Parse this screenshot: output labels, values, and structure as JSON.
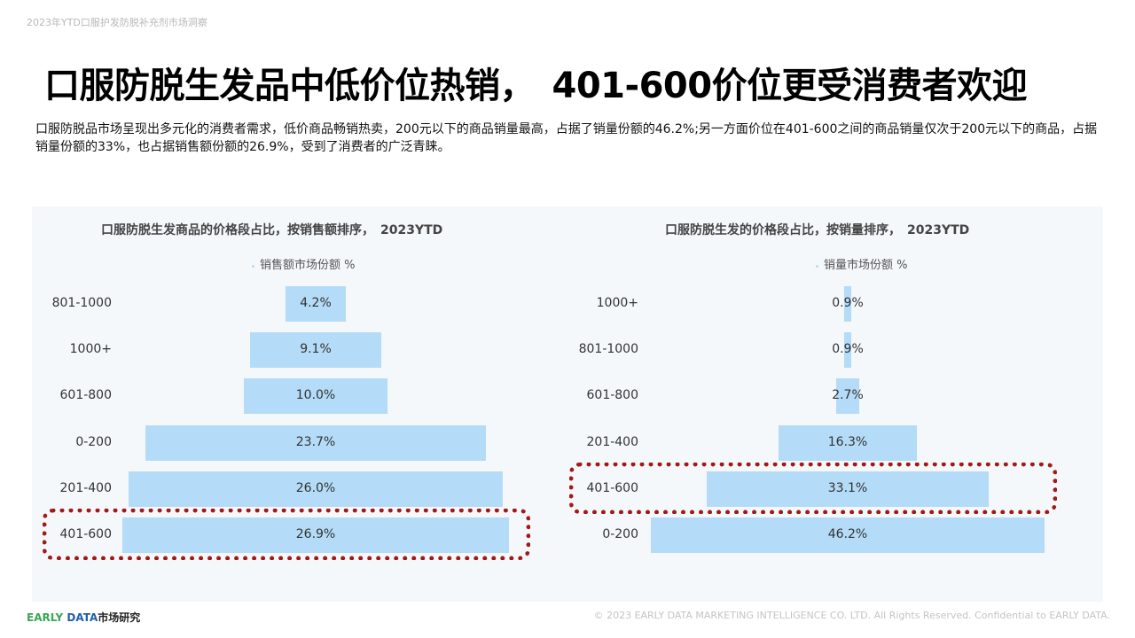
{
  "header": {
    "top_note": "2023年YTD口服护发防脱补充剂市场洞察",
    "title": "口服防脱生发品中低价位热销，　401-600价位更受消费者欢迎",
    "summary": "口服防脱品市场呈现出多元化的消费者需求，低价商品畅销热卖，200元以下的商品销量最高，占据了销量份额的46.2%;另一方面价位在401-600之间的商品销量仅次于200元以下的商品，占据销量份额的33%，也占据销售额份额的26.9%，受到了消费者的广泛青睐。"
  },
  "chart_data": [
    {
      "type": "bar",
      "orientation": "horizontal-centered",
      "title": "口服防脱生发商品的价格段占比，按销售额排序，　2023YTD",
      "categories": [
        "801-1000",
        "1000+",
        "601-800",
        "0-200",
        "201-400",
        "401-600"
      ],
      "series": [
        {
          "name": "销售额市场份额 %",
          "values": [
            4.2,
            9.1,
            10.0,
            23.7,
            26.0,
            26.9
          ],
          "labels": [
            "4.2%",
            "9.1%",
            "10.0%",
            "23.7%",
            "26.0%",
            "26.9%"
          ]
        }
      ],
      "highlighted_category": "401-600",
      "highlight_color": "#a31818",
      "bar_color": "#b4dbf7",
      "legend_position": "top"
    },
    {
      "type": "bar",
      "orientation": "horizontal-centered",
      "title": "口服防脱生发的价格段占比，按销量排序，　2023YTD",
      "categories": [
        "1000+",
        "801-1000",
        "601-800",
        "201-400",
        "401-600",
        "0-200"
      ],
      "series": [
        {
          "name": "销量市场份额 %",
          "values": [
            0.9,
            0.9,
            2.7,
            16.3,
            33.1,
            46.2
          ],
          "labels": [
            "0.9%",
            "0.9%",
            "2.7%",
            "16.3%",
            "33.1%",
            "46.2%"
          ]
        }
      ],
      "highlighted_category": "401-600",
      "highlight_color": "#a31818",
      "bar_color": "#b4dbf7",
      "legend_position": "top"
    }
  ],
  "footer": {
    "brand_early": "EARLY",
    "brand_data": "DATA",
    "brand_cn": "市场研究",
    "copyright": "© 2023 EARLY DATA MARKETING INTELLIGENCE CO. LTD. All Rights Reserved. Confidential to EARLY DATA."
  },
  "colors": {
    "bar": "#b4dbf7",
    "panel_bg": "#f4f8fb",
    "highlight": "#a31818",
    "brand_green": "#3aa655",
    "brand_blue": "#1f5fa8"
  }
}
